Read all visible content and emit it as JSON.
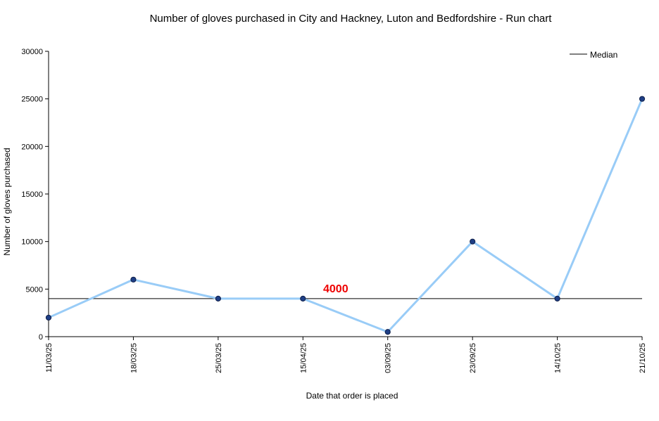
{
  "chart_data": {
    "type": "line",
    "title": "Number of gloves purchased in City and Hackney, Luton and Bedfordshire - Run chart",
    "xlabel": "Date that order is placed",
    "ylabel": "Number of gloves purchased",
    "categories": [
      "11/03/25",
      "18/03/25",
      "25/03/25",
      "15/04/25",
      "03/09/25",
      "23/09/25",
      "14/10/25",
      "21/10/25"
    ],
    "series": [
      {
        "values": [
          2000,
          6000,
          4000,
          4000,
          500,
          10000,
          4000,
          25000
        ]
      }
    ],
    "median": {
      "name": "Median",
      "value": 4000,
      "label": "4000"
    },
    "ylim": [
      0,
      30000
    ],
    "yticks": [
      0,
      5000,
      10000,
      15000,
      20000,
      25000,
      30000
    ],
    "grid": false,
    "legend": {
      "position": "top-right",
      "entries": [
        "Median"
      ]
    },
    "colors": {
      "line": "#99ccf7",
      "marker_fill": "#1f3f86",
      "marker_stroke": "#0e1f4a",
      "median": "#000000",
      "median_label": "#ee0000"
    }
  }
}
